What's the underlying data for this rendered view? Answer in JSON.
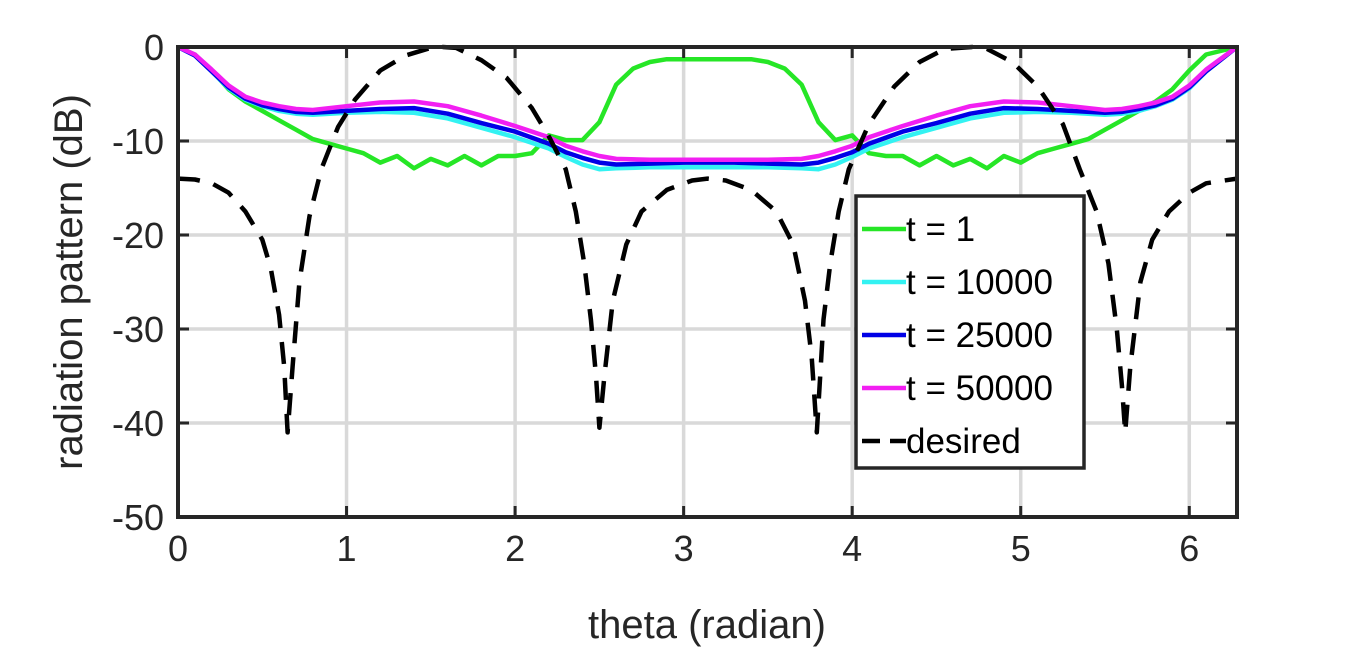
{
  "chart_data": {
    "type": "line",
    "xlabel": "theta (radian)",
    "ylabel": "radiation pattern (dB)",
    "xlim": [
      0,
      6.2832
    ],
    "ylim": [
      -50,
      0
    ],
    "xticks": [
      0,
      1,
      2,
      3,
      4,
      5,
      6
    ],
    "yticks": [
      0,
      -10,
      -20,
      -30,
      -40,
      -50
    ],
    "xtick_labels": [
      "0",
      "1",
      "2",
      "3",
      "4",
      "5",
      "6"
    ],
    "ytick_labels": [
      "0",
      "-10",
      "-20",
      "-30",
      "-40",
      "-50"
    ],
    "grid": true,
    "legend_position": "center-right inside",
    "series": [
      {
        "name": "t = 1",
        "color": "#26e626",
        "style": "solid",
        "x": [
          0,
          0.1,
          0.2,
          0.3,
          0.4,
          0.5,
          0.6,
          0.7,
          0.8,
          0.9,
          1.0,
          1.1,
          1.2,
          1.3,
          1.4,
          1.5,
          1.6,
          1.7,
          1.8,
          1.9,
          2.0,
          2.1,
          2.2,
          2.3,
          2.4,
          2.5,
          2.6,
          2.7,
          2.8,
          2.9,
          3.0,
          3.1,
          3.2,
          3.3,
          3.4,
          3.5,
          3.6,
          3.7,
          3.8,
          3.9,
          4.0,
          4.1,
          4.2,
          4.3,
          4.4,
          4.5,
          4.6,
          4.7,
          4.8,
          4.9,
          5.0,
          5.1,
          5.2,
          5.3,
          5.4,
          5.5,
          5.6,
          5.7,
          5.8,
          5.9,
          6.0,
          6.1,
          6.2832
        ],
        "y": [
          0,
          -0.8,
          -2.5,
          -4.5,
          -5.8,
          -6.8,
          -7.8,
          -8.8,
          -9.8,
          -10.3,
          -10.8,
          -11.3,
          -12.3,
          -11.6,
          -12.9,
          -11.9,
          -12.6,
          -11.6,
          -12.6,
          -11.6,
          -11.6,
          -11.3,
          -9.4,
          -9.9,
          -9.9,
          -8.0,
          -4.0,
          -2.3,
          -1.6,
          -1.3,
          -1.3,
          -1.3,
          -1.3,
          -1.3,
          -1.3,
          -1.6,
          -2.3,
          -4.0,
          -8.0,
          -9.9,
          -9.4,
          -11.3,
          -11.6,
          -11.6,
          -12.6,
          -11.6,
          -12.6,
          -11.9,
          -12.9,
          -11.6,
          -12.3,
          -11.3,
          -10.8,
          -10.3,
          -9.8,
          -8.8,
          -7.8,
          -6.8,
          -5.8,
          -4.5,
          -2.5,
          -0.8,
          0
        ]
      },
      {
        "name": "t = 10000",
        "color": "#33f2f2",
        "style": "solid",
        "x": [
          0,
          0.1,
          0.2,
          0.3,
          0.4,
          0.5,
          0.6,
          0.7,
          0.8,
          1.0,
          1.2,
          1.4,
          1.6,
          1.8,
          2.0,
          2.2,
          2.3,
          2.4,
          2.5,
          2.6,
          2.8,
          3.0,
          3.14,
          3.3,
          3.5,
          3.7,
          3.8,
          3.9,
          4.0,
          4.1,
          4.3,
          4.5,
          4.7,
          4.9,
          5.1,
          5.3,
          5.5,
          5.6,
          5.7,
          5.8,
          5.9,
          6.0,
          6.1,
          6.2832
        ],
        "y": [
          0,
          -0.9,
          -2.6,
          -4.4,
          -5.6,
          -6.3,
          -6.8,
          -7.1,
          -7.2,
          -7.0,
          -6.9,
          -7.0,
          -7.6,
          -8.6,
          -9.6,
          -10.8,
          -11.7,
          -12.5,
          -13.0,
          -12.9,
          -12.8,
          -12.8,
          -12.8,
          -12.8,
          -12.8,
          -12.9,
          -13.0,
          -12.5,
          -11.7,
          -10.8,
          -9.6,
          -8.6,
          -7.6,
          -7.0,
          -6.9,
          -7.0,
          -7.2,
          -7.1,
          -6.8,
          -6.3,
          -5.6,
          -4.4,
          -2.6,
          0
        ]
      },
      {
        "name": "t = 25000",
        "color": "#0000e6",
        "style": "solid",
        "x": [
          0,
          0.1,
          0.2,
          0.3,
          0.4,
          0.5,
          0.6,
          0.7,
          0.8,
          1.0,
          1.2,
          1.4,
          1.6,
          1.8,
          2.0,
          2.2,
          2.3,
          2.4,
          2.5,
          2.6,
          2.8,
          3.0,
          3.14,
          3.3,
          3.5,
          3.7,
          3.8,
          3.9,
          4.0,
          4.1,
          4.3,
          4.5,
          4.7,
          4.9,
          5.1,
          5.3,
          5.5,
          5.6,
          5.7,
          5.8,
          5.9,
          6.0,
          6.1,
          6.2832
        ],
        "y": [
          0,
          -0.9,
          -2.6,
          -4.3,
          -5.5,
          -6.2,
          -6.6,
          -6.9,
          -7.0,
          -6.8,
          -6.6,
          -6.5,
          -7.1,
          -8.1,
          -9.0,
          -10.3,
          -11.2,
          -11.8,
          -12.3,
          -12.5,
          -12.4,
          -12.3,
          -12.3,
          -12.3,
          -12.4,
          -12.5,
          -12.3,
          -11.8,
          -11.2,
          -10.3,
          -9.0,
          -8.1,
          -7.1,
          -6.5,
          -6.6,
          -6.8,
          -7.0,
          -6.9,
          -6.6,
          -6.2,
          -5.5,
          -4.3,
          -2.6,
          0
        ]
      },
      {
        "name": "t = 50000",
        "color": "#f21ff2",
        "style": "solid",
        "x": [
          0,
          0.1,
          0.2,
          0.3,
          0.4,
          0.5,
          0.6,
          0.7,
          0.8,
          1.0,
          1.2,
          1.4,
          1.6,
          1.8,
          2.0,
          2.2,
          2.3,
          2.4,
          2.5,
          2.6,
          2.8,
          3.0,
          3.14,
          3.3,
          3.5,
          3.7,
          3.8,
          3.9,
          4.0,
          4.1,
          4.3,
          4.5,
          4.7,
          4.9,
          5.1,
          5.3,
          5.5,
          5.6,
          5.7,
          5.8,
          5.9,
          6.0,
          6.1,
          6.2832
        ],
        "y": [
          0,
          -0.8,
          -2.4,
          -4.1,
          -5.3,
          -5.9,
          -6.3,
          -6.6,
          -6.7,
          -6.3,
          -5.9,
          -5.8,
          -6.3,
          -7.3,
          -8.4,
          -9.6,
          -10.5,
          -11.1,
          -11.6,
          -11.9,
          -12.0,
          -12.0,
          -12.0,
          -12.0,
          -12.0,
          -11.9,
          -11.6,
          -11.1,
          -10.5,
          -9.6,
          -8.4,
          -7.3,
          -6.3,
          -5.8,
          -5.9,
          -6.3,
          -6.7,
          -6.6,
          -6.3,
          -5.9,
          -5.3,
          -4.1,
          -2.4,
          0
        ]
      },
      {
        "name": "desired",
        "color": "#000000",
        "style": "dashed",
        "x": [
          0,
          0.1,
          0.2,
          0.3,
          0.4,
          0.5,
          0.55,
          0.6,
          0.63,
          0.65,
          0.68,
          0.72,
          0.78,
          0.85,
          0.95,
          1.05,
          1.2,
          1.35,
          1.5,
          1.5708,
          1.65,
          1.8,
          1.95,
          2.1,
          2.2,
          2.3,
          2.36,
          2.41,
          2.45,
          2.48,
          2.5,
          2.53,
          2.58,
          2.66,
          2.75,
          2.9,
          3.05,
          3.1416,
          3.25,
          3.4,
          3.55,
          3.65,
          3.72,
          3.76,
          3.79,
          3.81,
          3.83,
          3.87,
          3.92,
          3.98,
          4.1,
          4.25,
          4.4,
          4.55,
          4.7124,
          4.8,
          4.95,
          5.1,
          5.25,
          5.35,
          5.45,
          5.52,
          5.57,
          5.6,
          5.62,
          5.65,
          5.71,
          5.78,
          5.88,
          6.0,
          6.1,
          6.2832
        ],
        "y": [
          -14,
          -14.1,
          -14.5,
          -15.5,
          -17.5,
          -20.5,
          -23.5,
          -28.5,
          -34,
          -41,
          -34,
          -25,
          -18,
          -13,
          -8.5,
          -5.6,
          -2.5,
          -0.9,
          -0.1,
          0,
          -0.1,
          -1.4,
          -3.3,
          -6.5,
          -9.5,
          -13,
          -17.5,
          -23,
          -29,
          -35,
          -40.5,
          -35,
          -27,
          -21,
          -17.5,
          -15.2,
          -14.2,
          -14,
          -14.2,
          -15.2,
          -17.5,
          -21,
          -27,
          -33,
          -41,
          -35,
          -29,
          -23,
          -17.5,
          -13,
          -8.2,
          -4.2,
          -1.6,
          -0.2,
          0,
          -0.2,
          -1.6,
          -4.2,
          -8.2,
          -13,
          -17.5,
          -23,
          -30,
          -36,
          -41,
          -34,
          -25,
          -20.5,
          -17.5,
          -15.5,
          -14.5,
          -14
        ]
      }
    ]
  }
}
